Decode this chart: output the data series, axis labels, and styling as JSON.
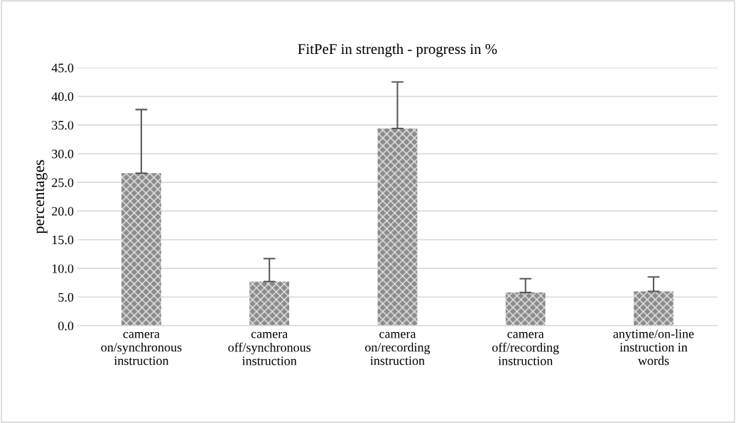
{
  "chart_data": {
    "type": "bar",
    "title": "FitPeF in strength - progress in %",
    "ylabel": "percentages",
    "categories": [
      "camera\non/synchronous\ninstruction",
      "camera\noff/synchronous\ninstruction",
      "camera\non/recording\ninstruction",
      "camera\noff/recording\ninstruction",
      "anytime/on-line\ninstruction in\nwords"
    ],
    "values": [
      26.6,
      7.7,
      34.4,
      5.8,
      6.0
    ],
    "errors": [
      [
        26.6,
        37.7
      ],
      [
        7.7,
        11.7
      ],
      [
        34.4,
        42.5
      ],
      [
        5.8,
        8.2
      ],
      [
        6.0,
        8.5
      ]
    ],
    "color": "#8c8c8c",
    "ylim": [
      0,
      45
    ],
    "yticks": [
      {
        "value": 0,
        "label": "0.0"
      },
      {
        "value": 5,
        "label": "5.0"
      },
      {
        "value": 10,
        "label": "10.0"
      },
      {
        "value": 15,
        "label": "15.0"
      },
      {
        "value": 20,
        "label": "20.0"
      },
      {
        "value": 25,
        "label": "25.0"
      },
      {
        "value": 30,
        "label": "30.0"
      },
      {
        "value": 35,
        "label": "35.0"
      },
      {
        "value": 40,
        "label": "40.0"
      },
      {
        "value": 45,
        "label": "45.0"
      }
    ],
    "grid": "y"
  }
}
